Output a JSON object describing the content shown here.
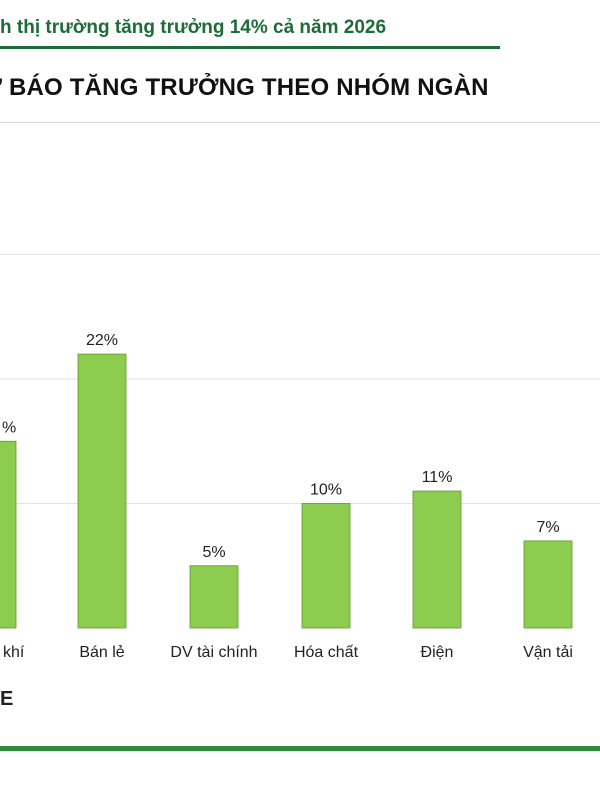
{
  "header": {
    "headline": "h thị trường tăng trưởng 14% cả năm 2026",
    "headline_color": "#1e6b3a"
  },
  "chart_data": {
    "type": "bar",
    "title": "Ư BÁO TĂNG TRƯỞNG THEO NHÓM NGÀN",
    "xlabel": "",
    "ylabel": "",
    "categories": [
      "khí",
      "Bán lẻ",
      "DV tài chính",
      "Hóa chất",
      "Điện",
      "Vận tải"
    ],
    "values": [
      15,
      22,
      5,
      10,
      11,
      7
    ],
    "data_labels": [
      "%",
      "22%",
      "5%",
      "10%",
      "11%",
      "7%"
    ],
    "ylim": [
      0,
      30
    ],
    "gridlines": [
      10,
      20,
      30
    ],
    "grid": true,
    "legend": "none",
    "bar_color": "#8ccc4e",
    "bar_edge_color": "#5d9a2a"
  },
  "footer": {
    "source_fragment": "E",
    "accent_color": "#2e8b3a"
  }
}
